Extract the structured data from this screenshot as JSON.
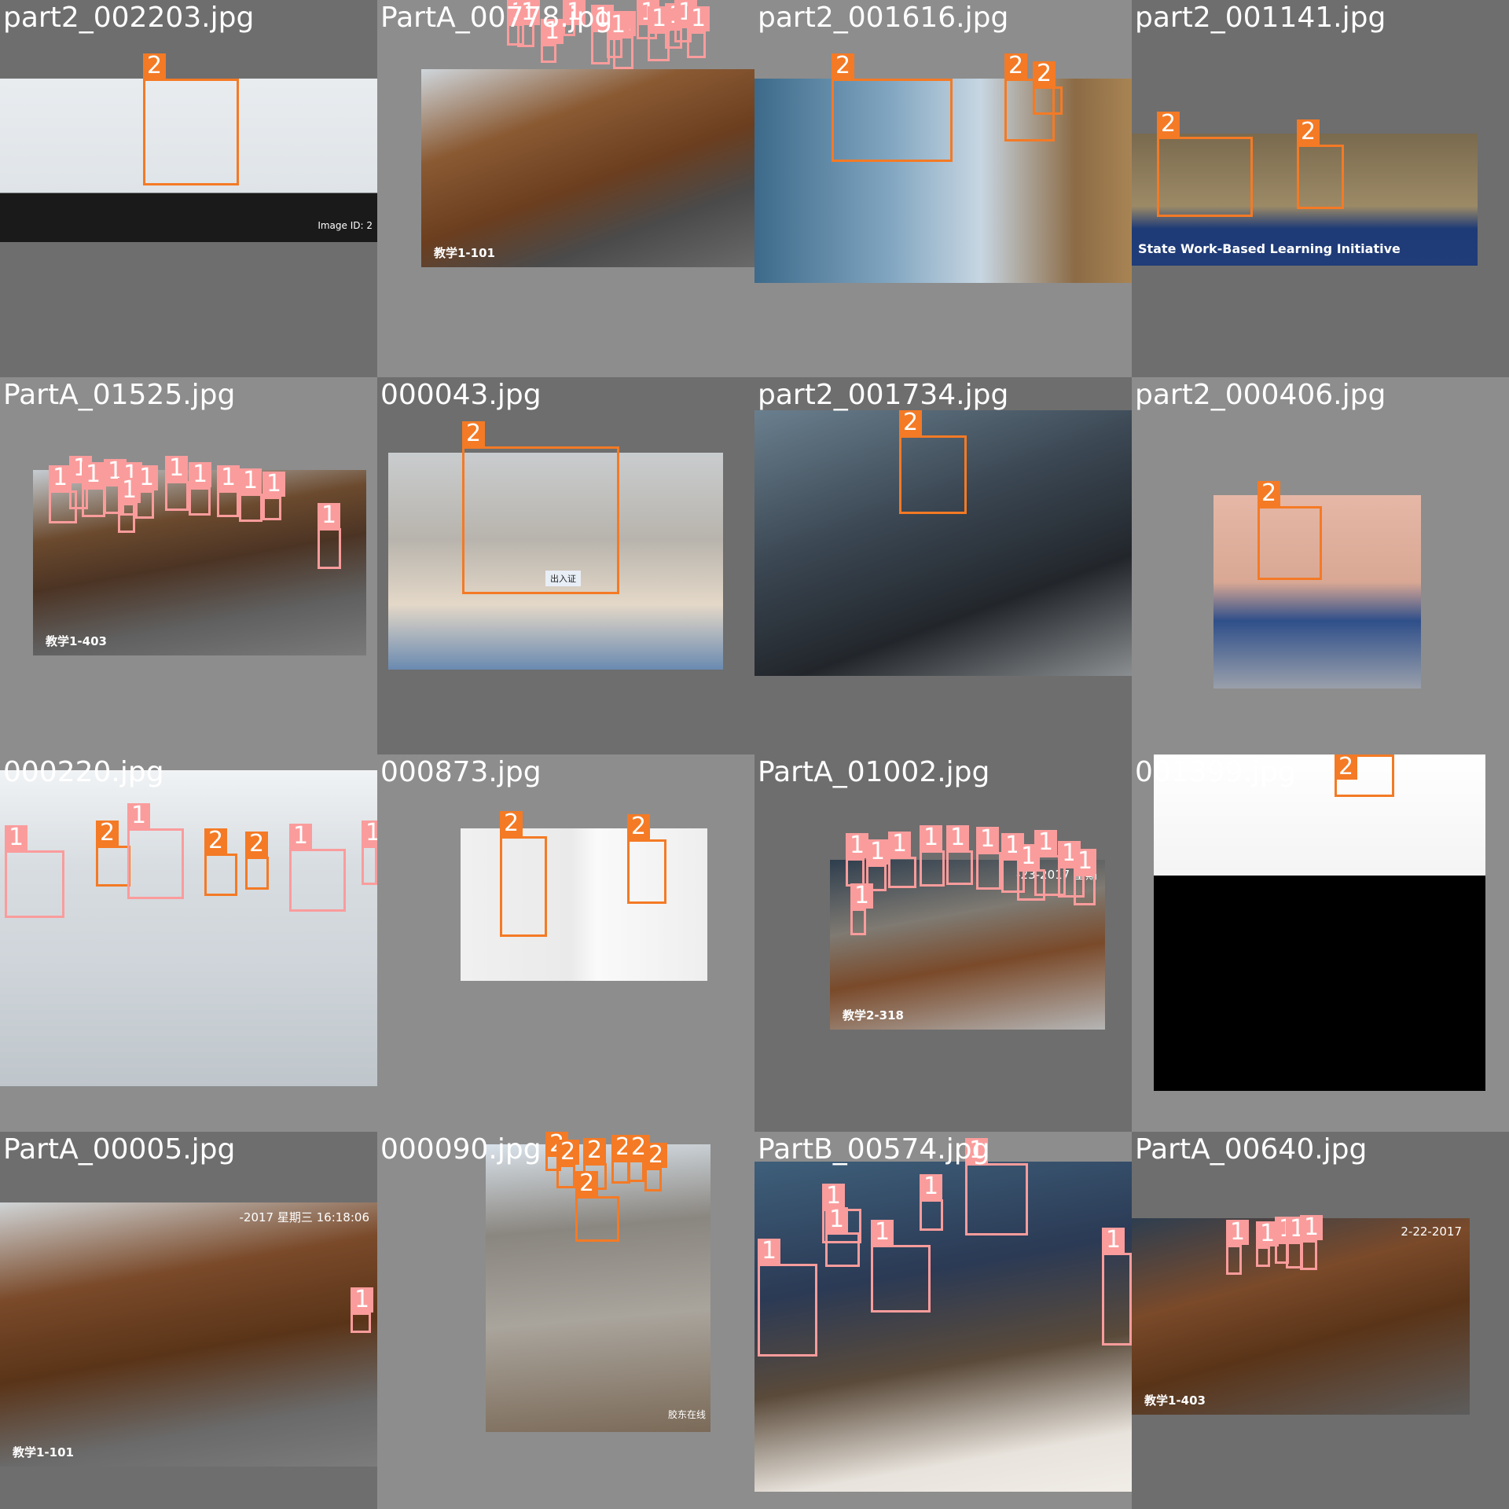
{
  "colors": {
    "class1": "#fa9c9c",
    "class2": "#f47a25",
    "tile_dark": "#707070",
    "tile_light": "#8d8d8d"
  },
  "tiles": [
    {
      "filename": "part2_002203.jpg",
      "watermark": "Image ID: 2",
      "boxes": [
        {
          "label": "2"
        }
      ]
    },
    {
      "filename": "PartA_00778.jpg",
      "caption": "教学1-101",
      "boxes": [
        {
          "label": "1"
        },
        {
          "label": "1"
        },
        {
          "label": "1"
        },
        {
          "label": "1"
        },
        {
          "label": "1"
        },
        {
          "label": "1"
        },
        {
          "label": "1"
        },
        {
          "label": "1"
        },
        {
          "label": "1"
        },
        {
          "label": "1"
        },
        {
          "label": "1"
        },
        {
          "label": "1"
        }
      ]
    },
    {
      "filename": "part2_001616.jpg",
      "boxes": [
        {
          "label": "2"
        },
        {
          "label": "2"
        },
        {
          "label": "2"
        }
      ]
    },
    {
      "filename": "part2_001141.jpg",
      "banner": "State Work-Based Learning Initiative",
      "boxes": [
        {
          "label": "2"
        },
        {
          "label": "2"
        }
      ]
    },
    {
      "filename": "PartA_01525.jpg",
      "caption": "教学1-403",
      "boxes": [
        {
          "label": "1"
        },
        {
          "label": "1"
        },
        {
          "label": "1"
        },
        {
          "label": "1"
        },
        {
          "label": "1"
        },
        {
          "label": "1"
        },
        {
          "label": "1"
        },
        {
          "label": "1"
        },
        {
          "label": "1"
        },
        {
          "label": "1"
        },
        {
          "label": "1"
        },
        {
          "label": "1"
        },
        {
          "label": "1"
        }
      ]
    },
    {
      "filename": "000043.jpg",
      "card_title": "出入证",
      "boxes": [
        {
          "label": "2"
        }
      ]
    },
    {
      "filename": "part2_001734.jpg",
      "boxes": [
        {
          "label": "2"
        }
      ]
    },
    {
      "filename": "part2_000406.jpg",
      "boxes": [
        {
          "label": "2"
        }
      ]
    },
    {
      "filename": "000220.jpg",
      "boxes": [
        {
          "label": "1"
        },
        {
          "label": "2"
        },
        {
          "label": "1"
        },
        {
          "label": "2"
        },
        {
          "label": "2"
        },
        {
          "label": "1"
        },
        {
          "label": "1"
        }
      ]
    },
    {
      "filename": "000873.jpg",
      "boxes": [
        {
          "label": "2"
        },
        {
          "label": "2"
        }
      ]
    },
    {
      "filename": "PartA_01002.jpg",
      "caption": "教学2-318",
      "timestamp": "-23-2017 星期",
      "boxes": [
        {
          "label": "1"
        },
        {
          "label": "1"
        },
        {
          "label": "1"
        },
        {
          "label": "1"
        },
        {
          "label": "1"
        },
        {
          "label": "1"
        },
        {
          "label": "1"
        },
        {
          "label": "1"
        },
        {
          "label": "1"
        },
        {
          "label": "1"
        },
        {
          "label": "1"
        },
        {
          "label": "1"
        }
      ]
    },
    {
      "filename": "001399.jpg",
      "boxes": [
        {
          "label": "2"
        }
      ]
    },
    {
      "filename": "PartA_00005.jpg",
      "caption": "教学1-101",
      "timestamp": "-2017 星期三 16:18:06",
      "boxes": [
        {
          "label": "1"
        }
      ]
    },
    {
      "filename": "000090.jpg",
      "watermark": "胶东在线",
      "boxes": [
        {
          "label": "2"
        },
        {
          "label": "2"
        },
        {
          "label": "2"
        },
        {
          "label": "2"
        },
        {
          "label": "2"
        },
        {
          "label": "2"
        },
        {
          "label": "2"
        }
      ]
    },
    {
      "filename": "PartB_00574.jpg",
      "boxes": [
        {
          "label": "1"
        },
        {
          "label": "1"
        },
        {
          "label": "1"
        },
        {
          "label": "1"
        },
        {
          "label": "1"
        },
        {
          "label": "1"
        },
        {
          "label": "1"
        }
      ]
    },
    {
      "filename": "PartA_00640.jpg",
      "caption": "教学1-403",
      "timestamp": "2-22-2017",
      "boxes": [
        {
          "label": "1"
        },
        {
          "label": "1"
        },
        {
          "label": "1"
        },
        {
          "label": "1"
        },
        {
          "label": "1"
        }
      ]
    }
  ]
}
